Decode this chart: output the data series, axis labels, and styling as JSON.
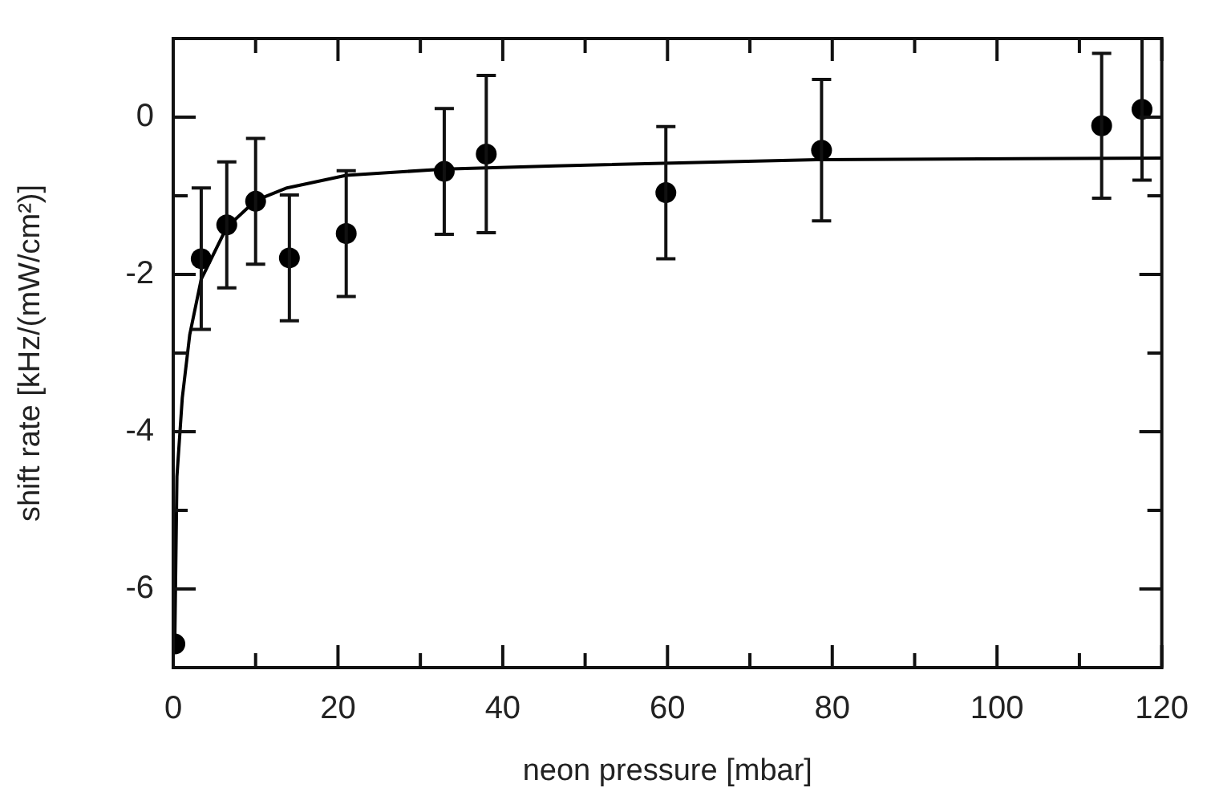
{
  "chart_data": {
    "type": "scatter",
    "xlabel": "neon pressure [mbar]",
    "ylabel": "shift rate [kHz/(mW/cm²)]",
    "xlim": [
      0,
      120
    ],
    "ylim": [
      -7,
      1
    ],
    "xticks": [
      0,
      {
        "value": 10,
        "label": null
      },
      20,
      {
        "value": 30,
        "label": null
      },
      40,
      {
        "value": 50,
        "label": null
      },
      60,
      {
        "value": 70,
        "label": null
      },
      80,
      {
        "value": 90,
        "label": null
      },
      100,
      {
        "value": 110,
        "label": null
      },
      120
    ],
    "yticks": [
      {
        "value": -7,
        "label": null
      },
      -6,
      {
        "value": -5,
        "label": null
      },
      -4,
      {
        "value": -3,
        "label": null
      },
      -2,
      {
        "value": -1,
        "label": null
      },
      0,
      {
        "value": 1,
        "label": null
      }
    ],
    "grid": false,
    "marker": "circle",
    "series": [
      {
        "color": "#000000",
        "x": [
          0.2,
          3.4,
          6.5,
          10.0,
          14.1,
          21.0,
          32.9,
          38.0,
          59.8,
          78.7,
          112.7,
          117.6
        ],
        "values": [
          -6.7,
          -1.8,
          -1.37,
          -1.07,
          -1.79,
          -1.48,
          -0.69,
          -0.47,
          -0.96,
          -0.42,
          -0.11,
          0.1
        ],
        "errors": [
          null,
          0.9,
          0.8,
          0.8,
          0.8,
          0.8,
          0.8,
          1.0,
          0.84,
          0.9,
          0.92,
          0.9
        ]
      },
      {
        "type": "line",
        "color": "#000000",
        "marker": "none",
        "line_style": "solid",
        "x": [
          0.2,
          0.45,
          1.1,
          2.0,
          3.4,
          6.5,
          10.0,
          13.8,
          21.0,
          32.9,
          46.4,
          78.7,
          120
        ],
        "values": [
          -6.6,
          -4.57,
          -3.57,
          -2.77,
          -2.06,
          -1.4,
          -1.06,
          -0.9,
          -0.74,
          -0.66,
          -0.62,
          -0.54,
          -0.52
        ]
      }
    ]
  }
}
